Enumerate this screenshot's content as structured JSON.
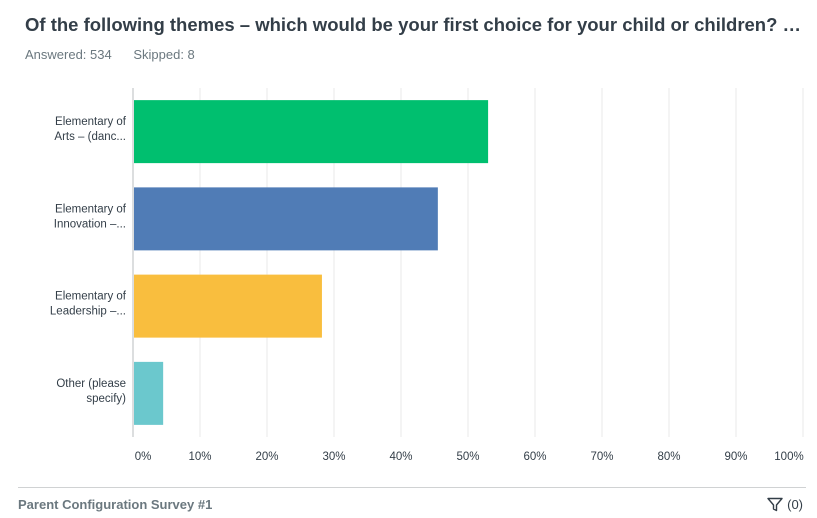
{
  "question": {
    "title": "Of the following themes – which would be your first choice for your child or children? If y..."
  },
  "stats": {
    "answered": "Answered: 534",
    "skipped": "Skipped: 8"
  },
  "footer": {
    "survey_name": "Parent Configuration Survey #1",
    "filter_count": "(0)"
  },
  "chart_data": {
    "type": "bar",
    "orientation": "horizontal",
    "categories": [
      [
        "Elementary of",
        "Arts – (danc..."
      ],
      [
        "Elementary of",
        "Innovation –..."
      ],
      [
        "Elementary of",
        "Leadership –..."
      ],
      [
        "Other (please",
        "specify)"
      ]
    ],
    "values": [
      53,
      45.5,
      28.2,
      4.5
    ],
    "colors": [
      "#00bf6f",
      "#507cb6",
      "#f9be3e",
      "#6bc8cd"
    ],
    "xlim": [
      0,
      100
    ],
    "xticks": [
      "0%",
      "10%",
      "20%",
      "30%",
      "40%",
      "50%",
      "60%",
      "70%",
      "80%",
      "90%",
      "100%"
    ],
    "grid": true
  }
}
